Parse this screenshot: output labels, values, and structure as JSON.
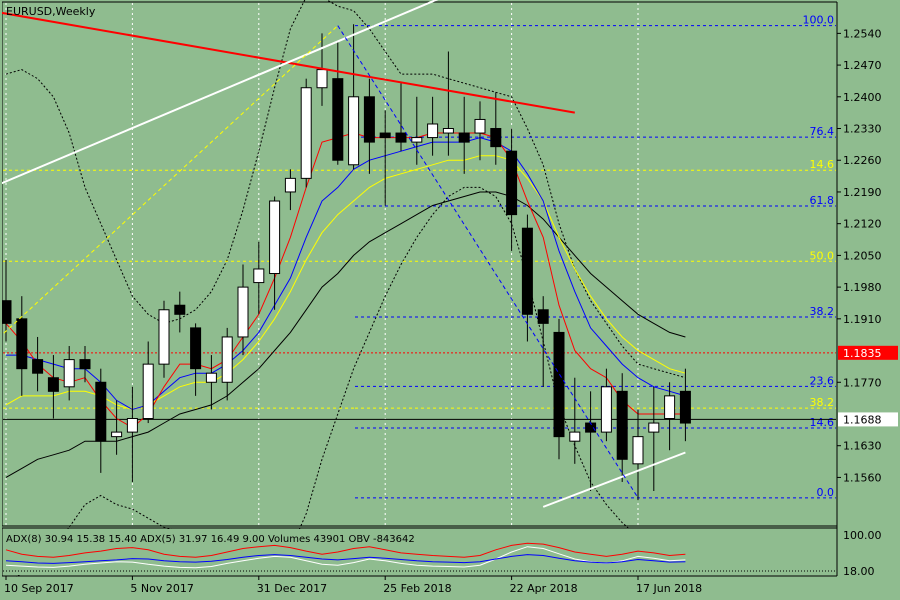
{
  "window": {
    "title": "EURUSD,Weekly"
  },
  "colors": {
    "background": "#8FBC8F",
    "bull_body": "#FFFFFF",
    "bear_body": "#000000",
    "ma_red": "#FF0000",
    "ma_blue": "#0000FF",
    "ma_yellow": "#FFFF00",
    "ma_black": "#000000",
    "bollinger": "#000000",
    "fib": "#0000FF",
    "trend_red": "#FF0000",
    "trend_white": "#FFFFFF",
    "current_price_label_bg": "#FFFFFF",
    "level_price_label_bg": "#FF0000"
  },
  "price_axis": {
    "ticks": [
      "1.2540",
      "1.2470",
      "1.2400",
      "1.2330",
      "1.2260",
      "1.2190",
      "1.2120",
      "1.2050",
      "1.1980",
      "1.1910",
      "1.1770",
      "1.1630",
      "1.1560"
    ],
    "tick_values": [
      1.254,
      1.247,
      1.24,
      1.233,
      1.226,
      1.219,
      1.212,
      1.205,
      1.198,
      1.191,
      1.177,
      1.163,
      1.156
    ],
    "range": [
      1.1455,
      1.2607
    ]
  },
  "time_axis": {
    "labels": [
      "10 Sep 2017",
      "5 Nov 2017",
      "31 Dec 2017",
      "25 Feb 2018",
      "22 Apr 2018",
      "17 Jun 2018"
    ],
    "label_bars": [
      0,
      8,
      16,
      24,
      32,
      40
    ]
  },
  "price_labels": {
    "level": "1.1835",
    "current": "1.1688"
  },
  "fib_levels": [
    {
      "label": "100.0",
      "price": 1.2557,
      "color": "#0000FF"
    },
    {
      "label": "76.4",
      "price": 1.2311,
      "color": "#0000FF"
    },
    {
      "label": "14.6",
      "price": 1.2238,
      "color": "#FFFF00"
    },
    {
      "label": "61.8",
      "price": 1.2159,
      "color": "#0000FF"
    },
    {
      "label": "50.0",
      "price": 1.2037,
      "color": "#FFFF00"
    },
    {
      "label": "38.2",
      "price": 1.1914,
      "color": "#0000FF"
    },
    {
      "label": "23.6",
      "price": 1.1761,
      "color": "#0000FF"
    },
    {
      "label": "38.2",
      "price": 1.1713,
      "color": "#FFFF00"
    },
    {
      "label": "14.6",
      "price": 1.1669,
      "color": "#0000FF"
    },
    {
      "label": "0.0",
      "price": 1.1515,
      "color": "#0000FF"
    }
  ],
  "indicator": {
    "text": "ADX(8) 30.94 15.38 15.40 ADX(5) 31.97 16.49 9.00 Volumes 43901 OBV -843642",
    "ticks": [
      "100.00",
      "18.00"
    ]
  },
  "chart_data": {
    "type": "candlestick",
    "symbol": "EURUSD",
    "timeframe": "Weekly",
    "y_range": [
      1.1455,
      1.2607
    ],
    "x_labels": [
      "10 Sep 2017",
      "5 Nov 2017",
      "31 Dec 2017",
      "25 Feb 2018",
      "22 Apr 2018",
      "17 Jun 2018"
    ],
    "candles": [
      {
        "o": 1.195,
        "h": 1.204,
        "l": 1.186,
        "c": 1.19
      },
      {
        "o": 1.191,
        "h": 1.196,
        "l": 1.174,
        "c": 1.18
      },
      {
        "o": 1.182,
        "h": 1.187,
        "l": 1.175,
        "c": 1.179
      },
      {
        "o": 1.178,
        "h": 1.183,
        "l": 1.169,
        "c": 1.175
      },
      {
        "o": 1.176,
        "h": 1.185,
        "l": 1.173,
        "c": 1.182
      },
      {
        "o": 1.182,
        "h": 1.185,
        "l": 1.177,
        "c": 1.18
      },
      {
        "o": 1.177,
        "h": 1.18,
        "l": 1.157,
        "c": 1.164
      },
      {
        "o": 1.165,
        "h": 1.173,
        "l": 1.161,
        "c": 1.166
      },
      {
        "o": 1.166,
        "h": 1.176,
        "l": 1.155,
        "c": 1.169
      },
      {
        "o": 1.169,
        "h": 1.186,
        "l": 1.168,
        "c": 1.181
      },
      {
        "o": 1.181,
        "h": 1.195,
        "l": 1.178,
        "c": 1.193
      },
      {
        "o": 1.194,
        "h": 1.197,
        "l": 1.188,
        "c": 1.192
      },
      {
        "o": 1.189,
        "h": 1.19,
        "l": 1.174,
        "c": 1.18
      },
      {
        "o": 1.177,
        "h": 1.183,
        "l": 1.171,
        "c": 1.179
      },
      {
        "o": 1.177,
        "h": 1.189,
        "l": 1.173,
        "c": 1.187
      },
      {
        "o": 1.187,
        "h": 1.203,
        "l": 1.183,
        "c": 1.198
      },
      {
        "o": 1.199,
        "h": 1.208,
        "l": 1.192,
        "c": 1.202
      },
      {
        "o": 1.201,
        "h": 1.218,
        "l": 1.193,
        "c": 1.217
      },
      {
        "o": 1.219,
        "h": 1.224,
        "l": 1.215,
        "c": 1.222
      },
      {
        "o": 1.222,
        "h": 1.244,
        "l": 1.22,
        "c": 1.242
      },
      {
        "o": 1.242,
        "h": 1.254,
        "l": 1.238,
        "c": 1.246
      },
      {
        "o": 1.244,
        "h": 1.252,
        "l": 1.225,
        "c": 1.226
      },
      {
        "o": 1.225,
        "h": 1.256,
        "l": 1.224,
        "c": 1.24
      },
      {
        "o": 1.24,
        "h": 1.244,
        "l": 1.223,
        "c": 1.23
      },
      {
        "o": 1.232,
        "h": 1.237,
        "l": 1.216,
        "c": 1.231
      },
      {
        "o": 1.232,
        "h": 1.243,
        "l": 1.228,
        "c": 1.23
      },
      {
        "o": 1.23,
        "h": 1.24,
        "l": 1.225,
        "c": 1.231
      },
      {
        "o": 1.231,
        "h": 1.24,
        "l": 1.227,
        "c": 1.234
      },
      {
        "o": 1.232,
        "h": 1.25,
        "l": 1.227,
        "c": 1.233
      },
      {
        "o": 1.232,
        "h": 1.24,
        "l": 1.223,
        "c": 1.23
      },
      {
        "o": 1.232,
        "h": 1.239,
        "l": 1.226,
        "c": 1.235
      },
      {
        "o": 1.233,
        "h": 1.241,
        "l": 1.225,
        "c": 1.229
      },
      {
        "o": 1.228,
        "h": 1.233,
        "l": 1.206,
        "c": 1.214
      },
      {
        "o": 1.211,
        "h": 1.214,
        "l": 1.186,
        "c": 1.192
      },
      {
        "o": 1.193,
        "h": 1.196,
        "l": 1.176,
        "c": 1.19
      },
      {
        "o": 1.188,
        "h": 1.191,
        "l": 1.16,
        "c": 1.165
      },
      {
        "o": 1.164,
        "h": 1.178,
        "l": 1.159,
        "c": 1.166
      },
      {
        "o": 1.168,
        "h": 1.175,
        "l": 1.153,
        "c": 1.166
      },
      {
        "o": 1.166,
        "h": 1.18,
        "l": 1.164,
        "c": 1.176
      },
      {
        "o": 1.175,
        "h": 1.179,
        "l": 1.155,
        "c": 1.16
      },
      {
        "o": 1.159,
        "h": 1.171,
        "l": 1.151,
        "c": 1.165
      },
      {
        "o": 1.166,
        "h": 1.176,
        "l": 1.153,
        "c": 1.168
      },
      {
        "o": 1.169,
        "h": 1.177,
        "l": 1.162,
        "c": 1.174
      },
      {
        "o": 1.175,
        "h": 1.18,
        "l": 1.164,
        "c": 1.168
      }
    ],
    "ma_red": [
      1.19,
      1.186,
      1.181,
      1.178,
      1.177,
      1.178,
      1.173,
      1.169,
      1.167,
      1.17,
      1.176,
      1.181,
      1.181,
      1.18,
      1.182,
      1.187,
      1.192,
      1.2,
      1.209,
      1.22,
      1.23,
      1.231,
      1.232,
      1.231,
      1.231,
      1.231,
      1.231,
      1.232,
      1.232,
      1.232,
      1.232,
      1.231,
      1.226,
      1.217,
      1.209,
      1.194,
      1.184,
      1.18,
      1.178,
      1.173,
      1.17,
      1.17,
      1.17,
      1.17
    ],
    "ma_blue": [
      1.183,
      1.183,
      1.182,
      1.181,
      1.18,
      1.18,
      1.177,
      1.173,
      1.171,
      1.172,
      1.175,
      1.178,
      1.179,
      1.179,
      1.181,
      1.184,
      1.188,
      1.194,
      1.2,
      1.209,
      1.217,
      1.22,
      1.224,
      1.226,
      1.227,
      1.228,
      1.229,
      1.23,
      1.23,
      1.23,
      1.231,
      1.23,
      1.228,
      1.223,
      1.217,
      1.206,
      1.197,
      1.189,
      1.185,
      1.181,
      1.178,
      1.176,
      1.175,
      1.174
    ],
    "ma_yellow": [
      1.172,
      1.174,
      1.174,
      1.174,
      1.175,
      1.175,
      1.174,
      1.172,
      1.171,
      1.172,
      1.174,
      1.176,
      1.177,
      1.177,
      1.179,
      1.182,
      1.186,
      1.191,
      1.197,
      1.204,
      1.21,
      1.214,
      1.217,
      1.22,
      1.222,
      1.223,
      1.224,
      1.225,
      1.226,
      1.226,
      1.227,
      1.227,
      1.226,
      1.222,
      1.217,
      1.209,
      1.202,
      1.196,
      1.191,
      1.187,
      1.184,
      1.182,
      1.18,
      1.179
    ],
    "ma_black": [
      1.156,
      1.158,
      1.16,
      1.161,
      1.162,
      1.164,
      1.164,
      1.164,
      1.165,
      1.166,
      1.168,
      1.17,
      1.171,
      1.172,
      1.174,
      1.177,
      1.18,
      1.184,
      1.188,
      1.193,
      1.198,
      1.201,
      1.205,
      1.208,
      1.21,
      1.212,
      1.214,
      1.216,
      1.217,
      1.218,
      1.219,
      1.219,
      1.218,
      1.216,
      1.213,
      1.209,
      1.205,
      1.201,
      1.198,
      1.195,
      1.192,
      1.19,
      1.188,
      1.187
    ],
    "bb_upper": [
      1.245,
      1.246,
      1.244,
      1.24,
      1.232,
      1.22,
      1.212,
      1.204,
      1.196,
      1.192,
      1.19,
      1.191,
      1.193,
      1.197,
      1.204,
      1.215,
      1.228,
      1.242,
      1.255,
      1.262,
      1.262,
      1.26,
      1.259,
      1.255,
      1.25,
      1.245,
      1.245,
      1.245,
      1.244,
      1.243,
      1.242,
      1.241,
      1.24,
      1.233,
      1.225,
      1.212,
      1.202,
      1.195,
      1.19,
      1.185,
      1.181,
      1.18,
      1.179,
      1.178
    ],
    "bb_lower": [
      1.132,
      1.135,
      1.138,
      1.14,
      1.145,
      1.15,
      1.152,
      1.15,
      1.149,
      1.147,
      1.145,
      1.144,
      1.143,
      1.141,
      1.139,
      1.137,
      1.136,
      1.137,
      1.14,
      1.148,
      1.16,
      1.17,
      1.18,
      1.188,
      1.196,
      1.203,
      1.209,
      1.214,
      1.218,
      1.22,
      1.22,
      1.218,
      1.212,
      1.2,
      1.186,
      1.172,
      1.163,
      1.155,
      1.15,
      1.146,
      1.143,
      1.141,
      1.14,
      1.139
    ],
    "trendlines": [
      {
        "color": "red",
        "from": {
          "bar": -6,
          "price": 1.262
        },
        "to": {
          "bar": 36,
          "price": 1.2365
        }
      },
      {
        "color": "white",
        "from": {
          "bar": -6,
          "price": 1.2125
        },
        "to": {
          "bar": 29,
          "price": 1.264
        }
      },
      {
        "color": "white",
        "from": {
          "bar": 34,
          "price": 1.1495
        },
        "to": {
          "bar": 43,
          "price": 1.1615
        }
      },
      {
        "color": "blue",
        "style": "dashed",
        "from": {
          "bar": 21,
          "price": 1.2557
        },
        "to": {
          "bar": 40,
          "price": 1.1515
        }
      },
      {
        "color": "yellow",
        "style": "dashed",
        "from": {
          "bar": -6,
          "price": 1.169
        },
        "to": {
          "bar": 21,
          "price": 1.2557
        }
      }
    ],
    "indicator_series": {
      "red": [
        0.55,
        0.45,
        0.4,
        0.38,
        0.42,
        0.48,
        0.52,
        0.58,
        0.6,
        0.55,
        0.45,
        0.4,
        0.38,
        0.42,
        0.5,
        0.58,
        0.62,
        0.65,
        0.6,
        0.52,
        0.45,
        0.5,
        0.58,
        0.62,
        0.55,
        0.48,
        0.45,
        0.42,
        0.4,
        0.38,
        0.42,
        0.55,
        0.65,
        0.7,
        0.68,
        0.6,
        0.5,
        0.45,
        0.4,
        0.45,
        0.52,
        0.48,
        0.42,
        0.45
      ],
      "blue": [
        0.3,
        0.28,
        0.25,
        0.24,
        0.26,
        0.28,
        0.3,
        0.32,
        0.35,
        0.34,
        0.3,
        0.28,
        0.27,
        0.29,
        0.33,
        0.38,
        0.42,
        0.44,
        0.42,
        0.38,
        0.34,
        0.32,
        0.35,
        0.38,
        0.36,
        0.33,
        0.3,
        0.28,
        0.27,
        0.26,
        0.28,
        0.34,
        0.4,
        0.44,
        0.42,
        0.36,
        0.3,
        0.27,
        0.25,
        0.28,
        0.33,
        0.3,
        0.27,
        0.28
      ],
      "white": [
        0.2,
        0.18,
        0.16,
        0.15,
        0.18,
        0.22,
        0.25,
        0.28,
        0.27,
        0.22,
        0.18,
        0.15,
        0.14,
        0.17,
        0.24,
        0.3,
        0.36,
        0.4,
        0.38,
        0.3,
        0.22,
        0.2,
        0.26,
        0.34,
        0.3,
        0.24,
        0.2,
        0.18,
        0.17,
        0.16,
        0.2,
        0.34,
        0.5,
        0.62,
        0.58,
        0.46,
        0.34,
        0.28,
        0.24,
        0.3,
        0.4,
        0.36,
        0.3,
        0.32
      ]
    }
  }
}
